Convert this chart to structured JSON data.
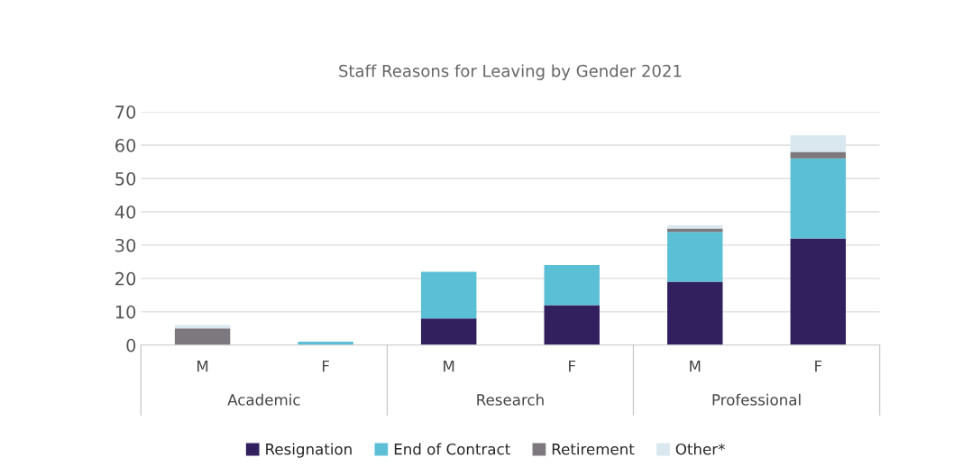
{
  "chart_data": {
    "type": "bar",
    "title": "Staff Reasons for Leaving by Gender 2021",
    "categories": [
      "M",
      "F",
      "M",
      "F",
      "M",
      "F"
    ],
    "annotations": [
      "Academic",
      "Research",
      "Professional"
    ],
    "series": [
      {
        "name": "Resignation",
        "color": "#311f5e",
        "values": [
          0,
          0,
          8,
          12,
          19,
          32
        ]
      },
      {
        "name": "End of Contract",
        "color": "#5bbfd6",
        "values": [
          0,
          1,
          14,
          12,
          15,
          24
        ]
      },
      {
        "name": "Retirement",
        "color": "#7d787d",
        "values": [
          5,
          0,
          0,
          0,
          1,
          2
        ]
      },
      {
        "name": "Other*",
        "color": "#d9e8ef",
        "values": [
          1,
          0,
          0,
          0,
          1,
          5
        ]
      }
    ],
    "stacked": true,
    "ylim": [
      0,
      70
    ],
    "yticks": [
      0,
      10,
      20,
      30,
      40,
      50,
      60,
      70
    ],
    "grid": "y",
    "legend": "bottom"
  }
}
